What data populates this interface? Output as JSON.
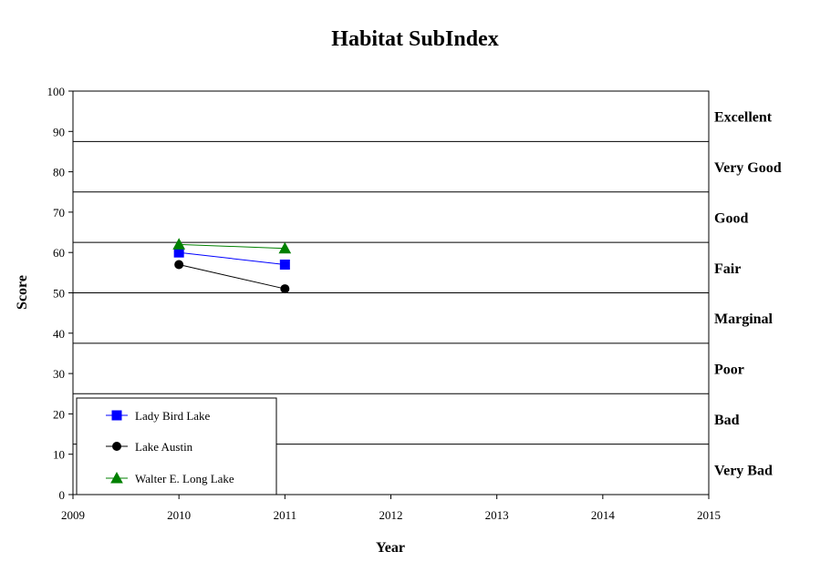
{
  "chart_data": {
    "type": "line",
    "title": "Habitat SubIndex",
    "xlabel": "Year",
    "ylabel": "Score",
    "xlim": [
      2009,
      2015
    ],
    "ylim": [
      0,
      100
    ],
    "xticks": [
      2009,
      2010,
      2011,
      2012,
      2013,
      2014,
      2015
    ],
    "yticks": [
      0,
      10,
      20,
      30,
      40,
      50,
      60,
      70,
      80,
      90,
      100
    ],
    "grid": false,
    "legend_position": "bottom-left",
    "bands": [
      {
        "label": "Excellent",
        "from": 87.5,
        "to": 100
      },
      {
        "label": "Very Good",
        "from": 75,
        "to": 87.5
      },
      {
        "label": "Good",
        "from": 62.5,
        "to": 75
      },
      {
        "label": "Fair",
        "from": 50,
        "to": 62.5
      },
      {
        "label": "Marginal",
        "from": 37.5,
        "to": 50
      },
      {
        "label": "Poor",
        "from": 25,
        "to": 37.5
      },
      {
        "label": "Bad",
        "from": 12.5,
        "to": 25
      },
      {
        "label": "Very Bad",
        "from": 0,
        "to": 12.5
      }
    ],
    "band_boundaries": [
      12.5,
      25,
      37.5,
      50,
      62.5,
      75,
      87.5
    ],
    "series": [
      {
        "name": "Lady Bird Lake",
        "color": "#0000ff",
        "marker": "square",
        "x": [
          2010,
          2011
        ],
        "y": [
          60,
          57
        ]
      },
      {
        "name": "Lake Austin",
        "color": "#000000",
        "marker": "circle",
        "x": [
          2010,
          2011
        ],
        "y": [
          57,
          51
        ]
      },
      {
        "name": "Walter E. Long Lake",
        "color": "#008000",
        "marker": "triangle",
        "x": [
          2010,
          2011
        ],
        "y": [
          62,
          61
        ]
      }
    ]
  }
}
